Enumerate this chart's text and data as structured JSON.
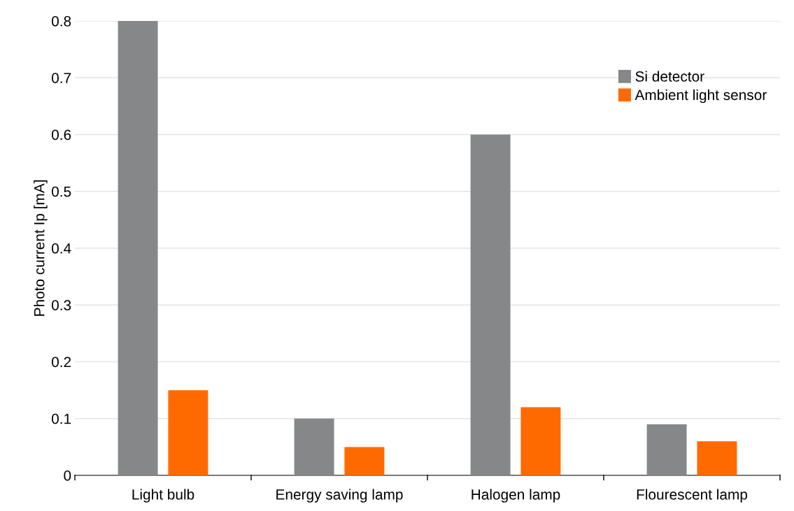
{
  "chart_data": {
    "type": "bar",
    "ylabel": "Photo current Ip [mA]",
    "categories": [
      "Light bulb",
      "Energy saving lamp",
      "Halogen lamp",
      "Flourescent lamp"
    ],
    "series": [
      {
        "name": "Si detector",
        "color": "#868789",
        "values": [
          0.8,
          0.1,
          0.6,
          0.09
        ]
      },
      {
        "name": "Ambient light sensor",
        "color": "#ff6a00",
        "values": [
          0.15,
          0.05,
          0.12,
          0.06
        ]
      }
    ],
    "ylim": [
      0,
      0.8
    ],
    "yticks": [
      0,
      0.1,
      0.2,
      0.3,
      0.4,
      0.5,
      0.6,
      0.7,
      0.8
    ],
    "grid": "y",
    "legend": "top right"
  }
}
